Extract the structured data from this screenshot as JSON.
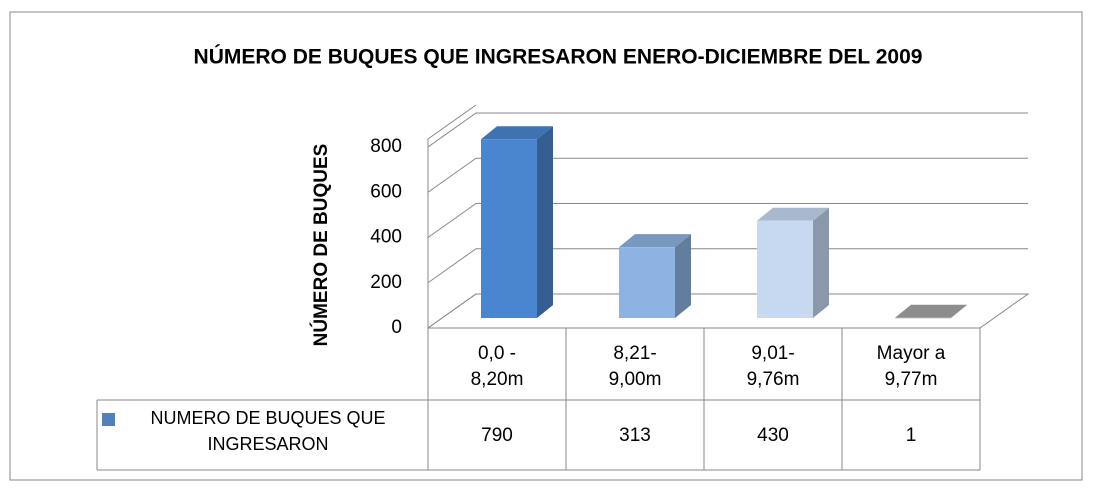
{
  "chart_data": {
    "type": "bar3d",
    "title": "NÚMERO DE BUQUES QUE INGRESARON  ENERO-DICIEMBRE DEL 2009",
    "y_label": "NÚMERO DE BUQUES",
    "categories": [
      "0,0 -\n8,20m",
      "8,21-\n9,00m",
      "9,01-\n9,76m",
      "Mayor a\n9,77m"
    ],
    "series": [
      {
        "name": "NUMERO DE BUQUES QUE INGRESARON",
        "color": "#4f81bd",
        "point_colors": [
          "#4a86d0",
          "#8db3e2",
          "#c6d9f1",
          "#a6a6a6"
        ],
        "values": [
          790,
          313,
          430,
          1
        ]
      }
    ],
    "ylim": [
      0,
      800
    ],
    "yticks": [
      0,
      200,
      400,
      600,
      800
    ],
    "grid": true,
    "data_table": true
  }
}
